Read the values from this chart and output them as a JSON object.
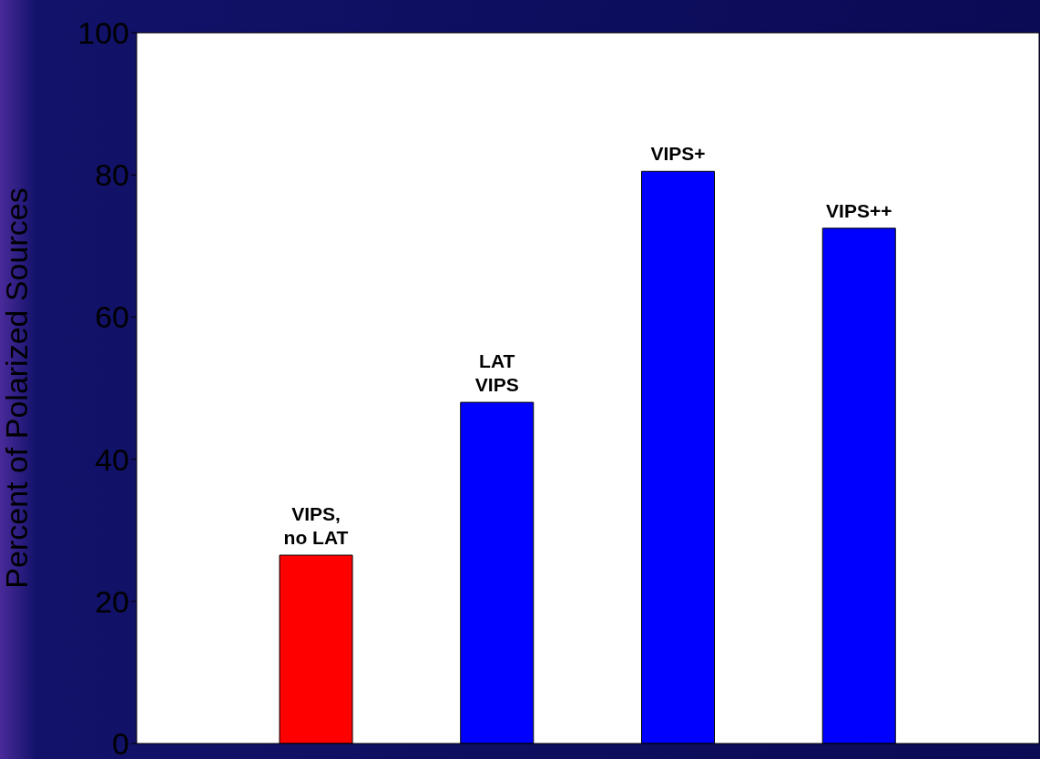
{
  "chart_data": {
    "type": "bar",
    "ylabel": "Percent of Polarized Sources",
    "categories": [
      "VIPS,\nno LAT",
      "LAT\nVIPS",
      "VIPS+",
      "VIPS++"
    ],
    "values": [
      26.5,
      48,
      80.5,
      72.5
    ],
    "colors": [
      "#ff0000",
      "#0000ff",
      "#0000ff",
      "#0000ff"
    ],
    "ylim": [
      0,
      100
    ],
    "yticks": [
      0,
      20,
      40,
      60,
      80,
      100
    ],
    "tick_labels": "y"
  }
}
